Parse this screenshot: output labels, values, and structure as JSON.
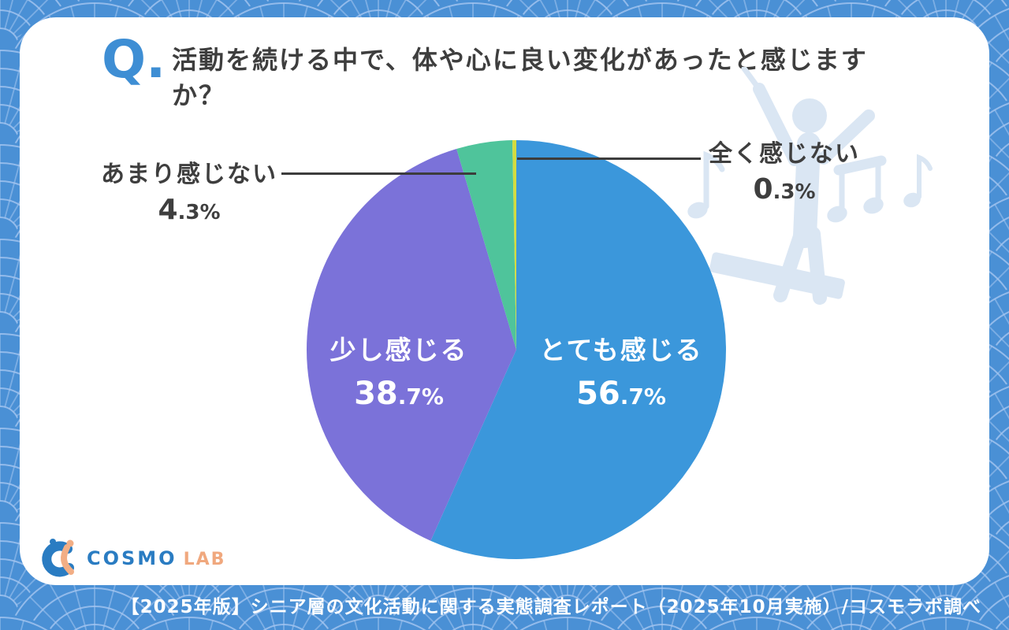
{
  "question": {
    "marker": "Q.",
    "text": "活動を続ける中で、体や心に良い変化があったと感じますか？"
  },
  "chart_data": {
    "type": "pie",
    "title": "活動を続ける中で、体や心に良い変化があったと感じますか？",
    "unit": "%",
    "direction": "clockwise",
    "start_angle_deg": 0,
    "legend_position": "none",
    "slices": [
      {
        "label": "とても感じる",
        "value": 56.7,
        "pct_int": "56",
        "pct_frac": ".7%",
        "color": "#3B97DB",
        "label_mode": "inside"
      },
      {
        "label": "少し感じる",
        "value": 38.7,
        "pct_int": "38",
        "pct_frac": ".7%",
        "color": "#7B72D9",
        "label_mode": "inside"
      },
      {
        "label": "あまり感じない",
        "value": 4.3,
        "pct_int": "4",
        "pct_frac": ".3%",
        "color": "#4FC49B",
        "label_mode": "callout-left"
      },
      {
        "label": "全く感じない",
        "value": 0.3,
        "pct_int": "0",
        "pct_frac": ".3%",
        "color": "#D4DC3F",
        "label_mode": "callout-right"
      }
    ]
  },
  "logo": {
    "cosmo": "COSMO",
    "lab": "LAB"
  },
  "footer": {
    "text": "【2025年版】シニア層の文化活動に関する実態調査レポート（2025年10月実施）/コスモラボ調べ"
  },
  "colors": {
    "pattern_base": "#4A90D5",
    "pattern_line": "#A5C6F0",
    "card": "#FFFFFF",
    "text_dark": "#3E3E3E",
    "q_blue": "#3E8ED4",
    "leader_line": "#3C3C3C",
    "logo_blue": "#2A7CC2",
    "logo_salmon": "#F0A87E",
    "watermark": "#DAE6F3"
  }
}
